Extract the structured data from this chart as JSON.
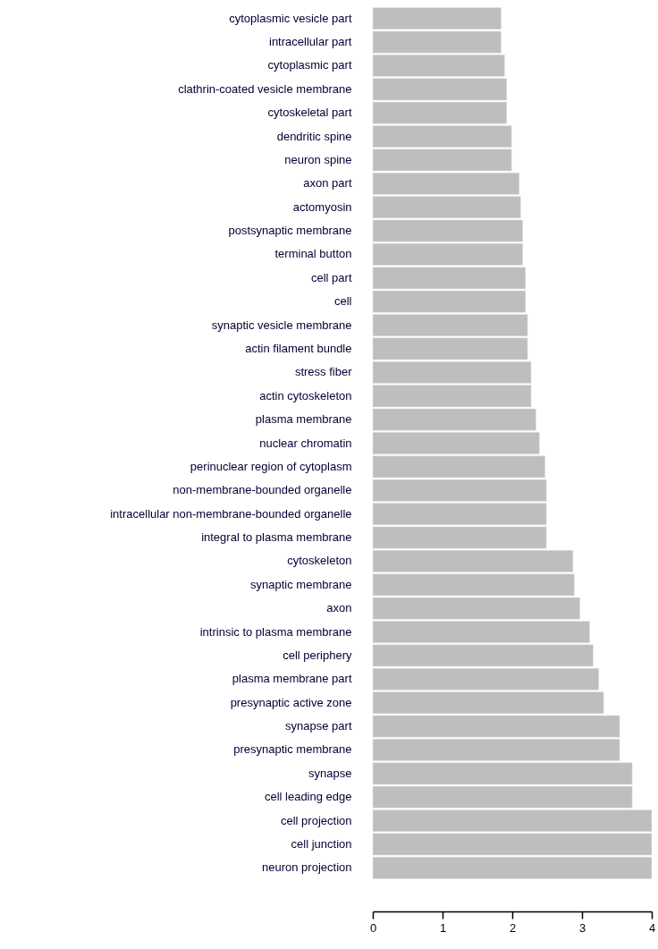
{
  "chart_data": {
    "type": "bar",
    "orientation": "horizontal",
    "color": "#bebebe",
    "grid": false,
    "categories": [
      "cytoplasmic vesicle part",
      "intracellular part",
      "cytoplasmic part",
      "clathrin-coated vesicle membrane",
      "cytoskeletal part",
      "dendritic spine",
      "neuron spine",
      "axon part",
      "actomyosin",
      "postsynaptic membrane",
      "terminal button",
      "cell part",
      "cell",
      "synaptic vesicle membrane",
      "actin filament bundle",
      "stress fiber",
      "actin cytoskeleton",
      "plasma membrane",
      "nuclear chromatin",
      "perinuclear region of cytoplasm",
      "non-membrane-bounded organelle",
      "intracellular non-membrane-bounded organelle",
      "integral to plasma membrane",
      "cytoskeleton",
      "synaptic membrane",
      "axon",
      "intrinsic to plasma membrane",
      "cell periphery",
      "plasma membrane part",
      "presynaptic active zone",
      "synapse part",
      "presynaptic membrane",
      "synapse",
      "cell leading edge",
      "cell projection",
      "cell junction",
      "neuron projection"
    ],
    "values": [
      1.84,
      1.84,
      1.89,
      1.92,
      1.92,
      1.99,
      1.99,
      2.1,
      2.12,
      2.15,
      2.15,
      2.19,
      2.19,
      2.22,
      2.22,
      2.27,
      2.27,
      2.34,
      2.39,
      2.47,
      2.49,
      2.49,
      2.49,
      2.87,
      2.89,
      2.97,
      3.11,
      3.16,
      3.24,
      3.31,
      3.54,
      3.54,
      3.72,
      3.72,
      4.0,
      4.0,
      4.0
    ],
    "xlim": [
      0,
      4
    ],
    "xticks": [
      0,
      1,
      2,
      3,
      4
    ]
  }
}
